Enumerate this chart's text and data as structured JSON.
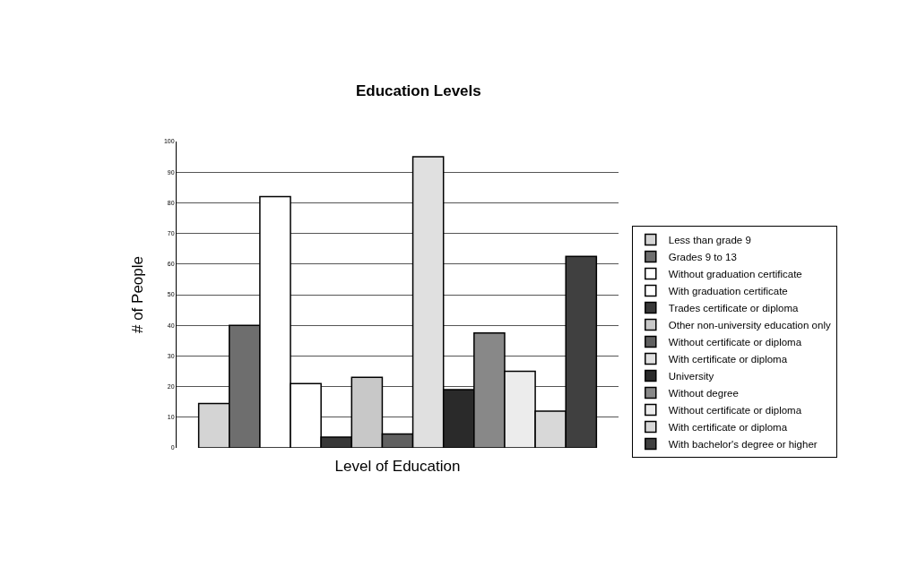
{
  "chart_data": {
    "type": "bar",
    "title": "Education Levels",
    "xlabel": "Level of Education",
    "ylabel": "# of People",
    "categories": [
      null
    ],
    "series": [
      {
        "name": "Less than grade 9",
        "color": "#d4d4d4",
        "values": [
          14.5
        ]
      },
      {
        "name": "Grades 9 to 13",
        "color": "#6e6e6e",
        "values": [
          40
        ]
      },
      {
        "name": "Without graduation certificate",
        "color": "#ffffff",
        "values": [
          82
        ]
      },
      {
        "name": "With graduation certificate",
        "color": "#ffffff",
        "values": [
          21
        ]
      },
      {
        "name": "Trades certificate or diploma",
        "color": "#383838",
        "values": [
          3.5
        ]
      },
      {
        "name": "Other non-university education only",
        "color": "#c8c8c8",
        "values": [
          23
        ]
      },
      {
        "name": "Without certificate or diploma",
        "color": "#606060",
        "values": [
          4.5
        ]
      },
      {
        "name": "With certificate or diploma",
        "color": "#e0e0e0",
        "values": [
          95
        ]
      },
      {
        "name": "University",
        "color": "#2a2a2a",
        "values": [
          19
        ]
      },
      {
        "name": "Without degree",
        "color": "#888888",
        "values": [
          37.5
        ]
      },
      {
        "name": "Without certificate or diploma",
        "color": "#ececec",
        "values": [
          25
        ]
      },
      {
        "name": "With certificate or diploma",
        "color": "#d8d8d8",
        "values": [
          12
        ]
      },
      {
        "name": "With bachelor's degree or higher",
        "color": "#404040",
        "values": [
          62.5
        ]
      }
    ],
    "ylim": [
      0,
      100
    ],
    "yticks": [
      0,
      10,
      20,
      30,
      40,
      50,
      60,
      70,
      80,
      90,
      100
    ],
    "grid": "y",
    "legend": "right",
    "tick_labels": "y"
  }
}
